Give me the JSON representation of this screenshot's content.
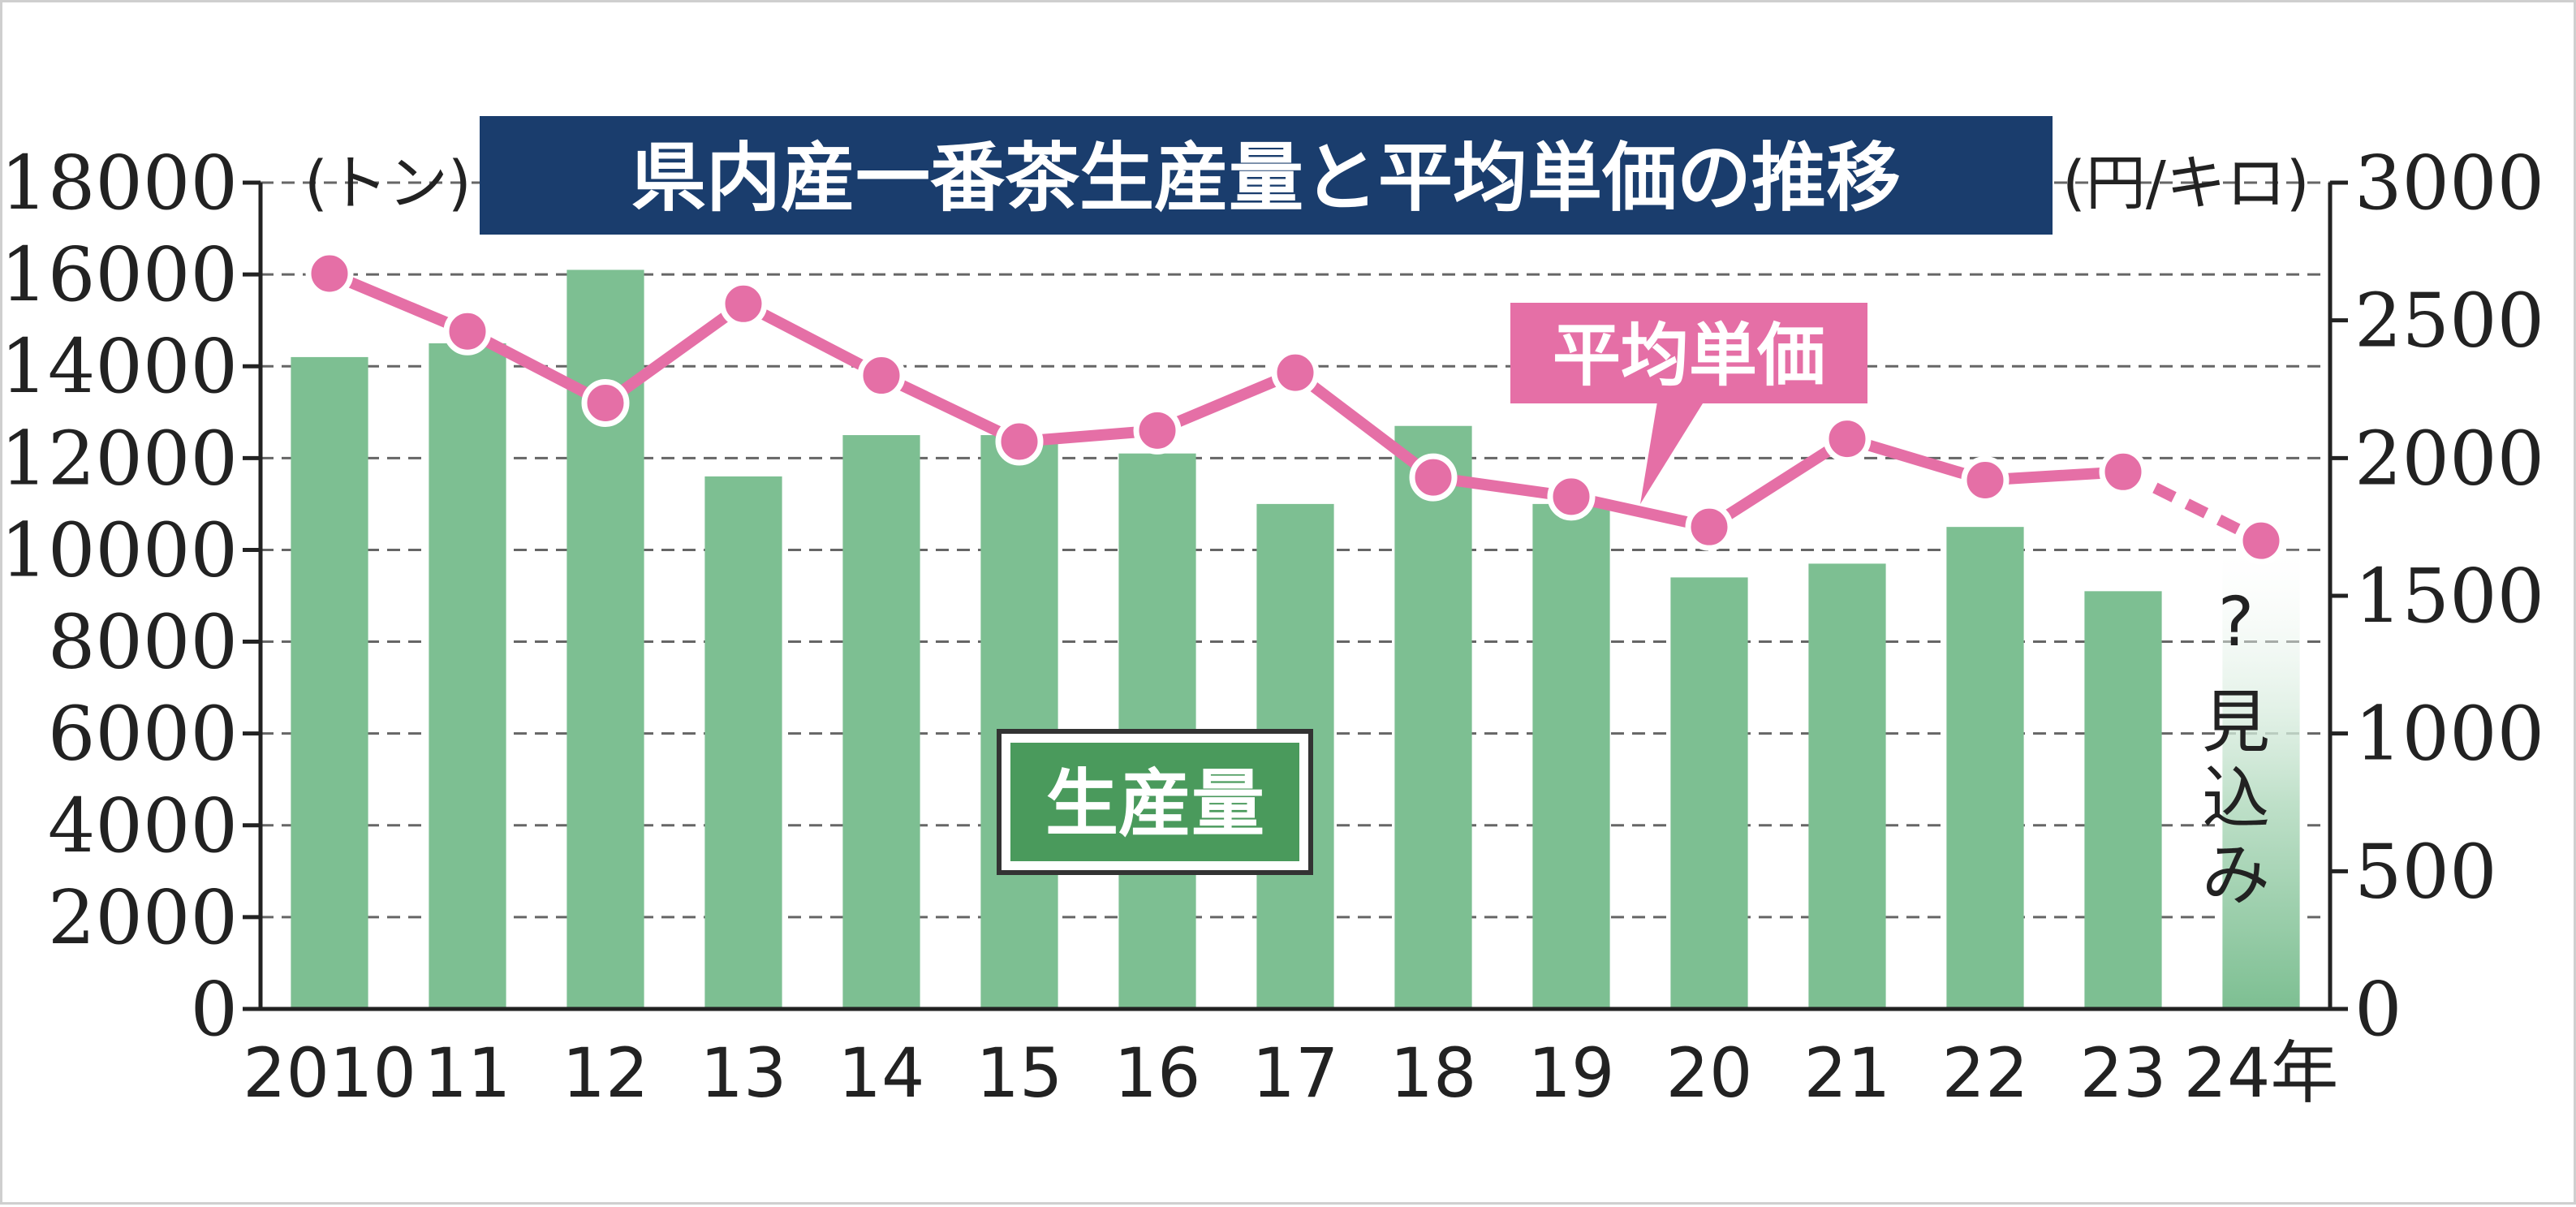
{
  "chart_data": {
    "type": "bar+line",
    "title": "県内産一番茶生産量と平均単価の推移",
    "left_unit": "(トン)",
    "right_unit": "(円/キロ)",
    "categories": [
      "2010",
      "11",
      "12",
      "13",
      "14",
      "15",
      "16",
      "17",
      "18",
      "19",
      "20",
      "21",
      "22",
      "23",
      "24年"
    ],
    "left_ticks": [
      "0",
      "2000",
      "4000",
      "6000",
      "8000",
      "10000",
      "12000",
      "14000",
      "16000",
      "18000"
    ],
    "right_ticks": [
      "0",
      "500",
      "1000",
      "1500",
      "2000",
      "2500",
      "3000"
    ],
    "ylim_left": [
      0,
      18000
    ],
    "ylim_right": [
      0,
      3000
    ],
    "grid": "dashed horizontal",
    "series": [
      {
        "name": "生産量",
        "kind": "bar",
        "axis": "left",
        "values": [
          14200,
          14500,
          16100,
          11600,
          12500,
          12500,
          12100,
          11000,
          12700,
          11000,
          9400,
          9700,
          10500,
          9100,
          10000
        ],
        "estimated_last": true,
        "color": "#7dbf92"
      },
      {
        "name": "平均単価",
        "kind": "line",
        "axis": "right",
        "values": [
          2670,
          2460,
          2200,
          2560,
          2300,
          2060,
          2100,
          2310,
          1930,
          1860,
          1750,
          2070,
          1920,
          1950,
          1700
        ],
        "estimated_last": true,
        "color": "#e56fa6"
      }
    ],
    "annotations": {
      "estimate_question": "?",
      "estimate_label": "見込み"
    }
  },
  "colors": {
    "title_bg": "#1a3d6d",
    "bar": "#7dbf92",
    "line": "#e56fa6",
    "label_box": "#4a9a5c"
  }
}
